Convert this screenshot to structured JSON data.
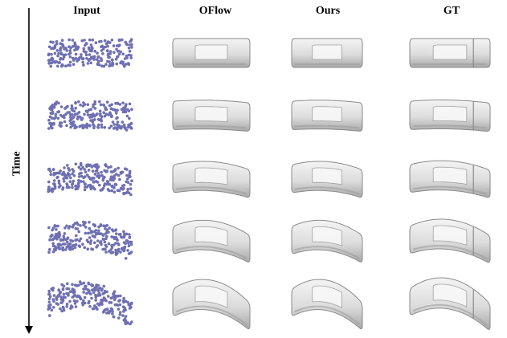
{
  "columns": [
    "Input",
    "OFlow",
    "Ours",
    "GT"
  ],
  "axis_label": "Time",
  "colors": {
    "points": "#6f6fb3",
    "mesh_fill": "#e4e4e4",
    "mesh_edge": "#8a8a8a",
    "mesh_shadow": "#9c9c9c",
    "mesh_highlight": "#f8f8f8"
  },
  "rows": 5
}
